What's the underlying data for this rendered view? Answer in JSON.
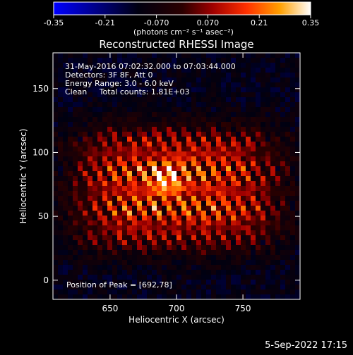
{
  "chart_data": {
    "type": "heatmap",
    "title": "Reconstructed RHESSI Image",
    "colorbar": {
      "min": -0.35,
      "max": 0.35,
      "ticks": [
        "-0.35",
        "-0.21",
        "-0.070",
        "0.070",
        "0.21",
        "0.35"
      ],
      "unit_label": "(photons cm⁻² s⁻¹ asec⁻²)",
      "colormap": [
        "#0000ff",
        "#000000",
        "#8b0000",
        "#ff2000",
        "#ff8000",
        "#ffd000",
        "#ffffff"
      ]
    },
    "xlabel": "Heliocentric X (arcsec)",
    "ylabel": "Heliocentric Y (arcsec)",
    "xlim": [
      607,
      793
    ],
    "ylim": [
      -15,
      178
    ],
    "xticks": [
      650,
      700,
      750
    ],
    "yticks": [
      0,
      50,
      100,
      150
    ],
    "annotations": [
      "31-May-2016 07:02:32.000 to 07:03:44.000",
      "Detectors: 3F 8F, Att 0",
      "Energy Range: 3.0 - 6.0 keV",
      "Clean     Total counts: 1.81E+03"
    ],
    "peak": {
      "label": "Position of Peak = [692,78]",
      "x": 692,
      "y": 78
    },
    "source": {
      "center_x": 700,
      "center_y": 72,
      "fringe_spacing_x": 11,
      "fringe_tilt": 0.55
    }
  },
  "footer": {
    "date": "5-Sep-2022 17:15"
  }
}
